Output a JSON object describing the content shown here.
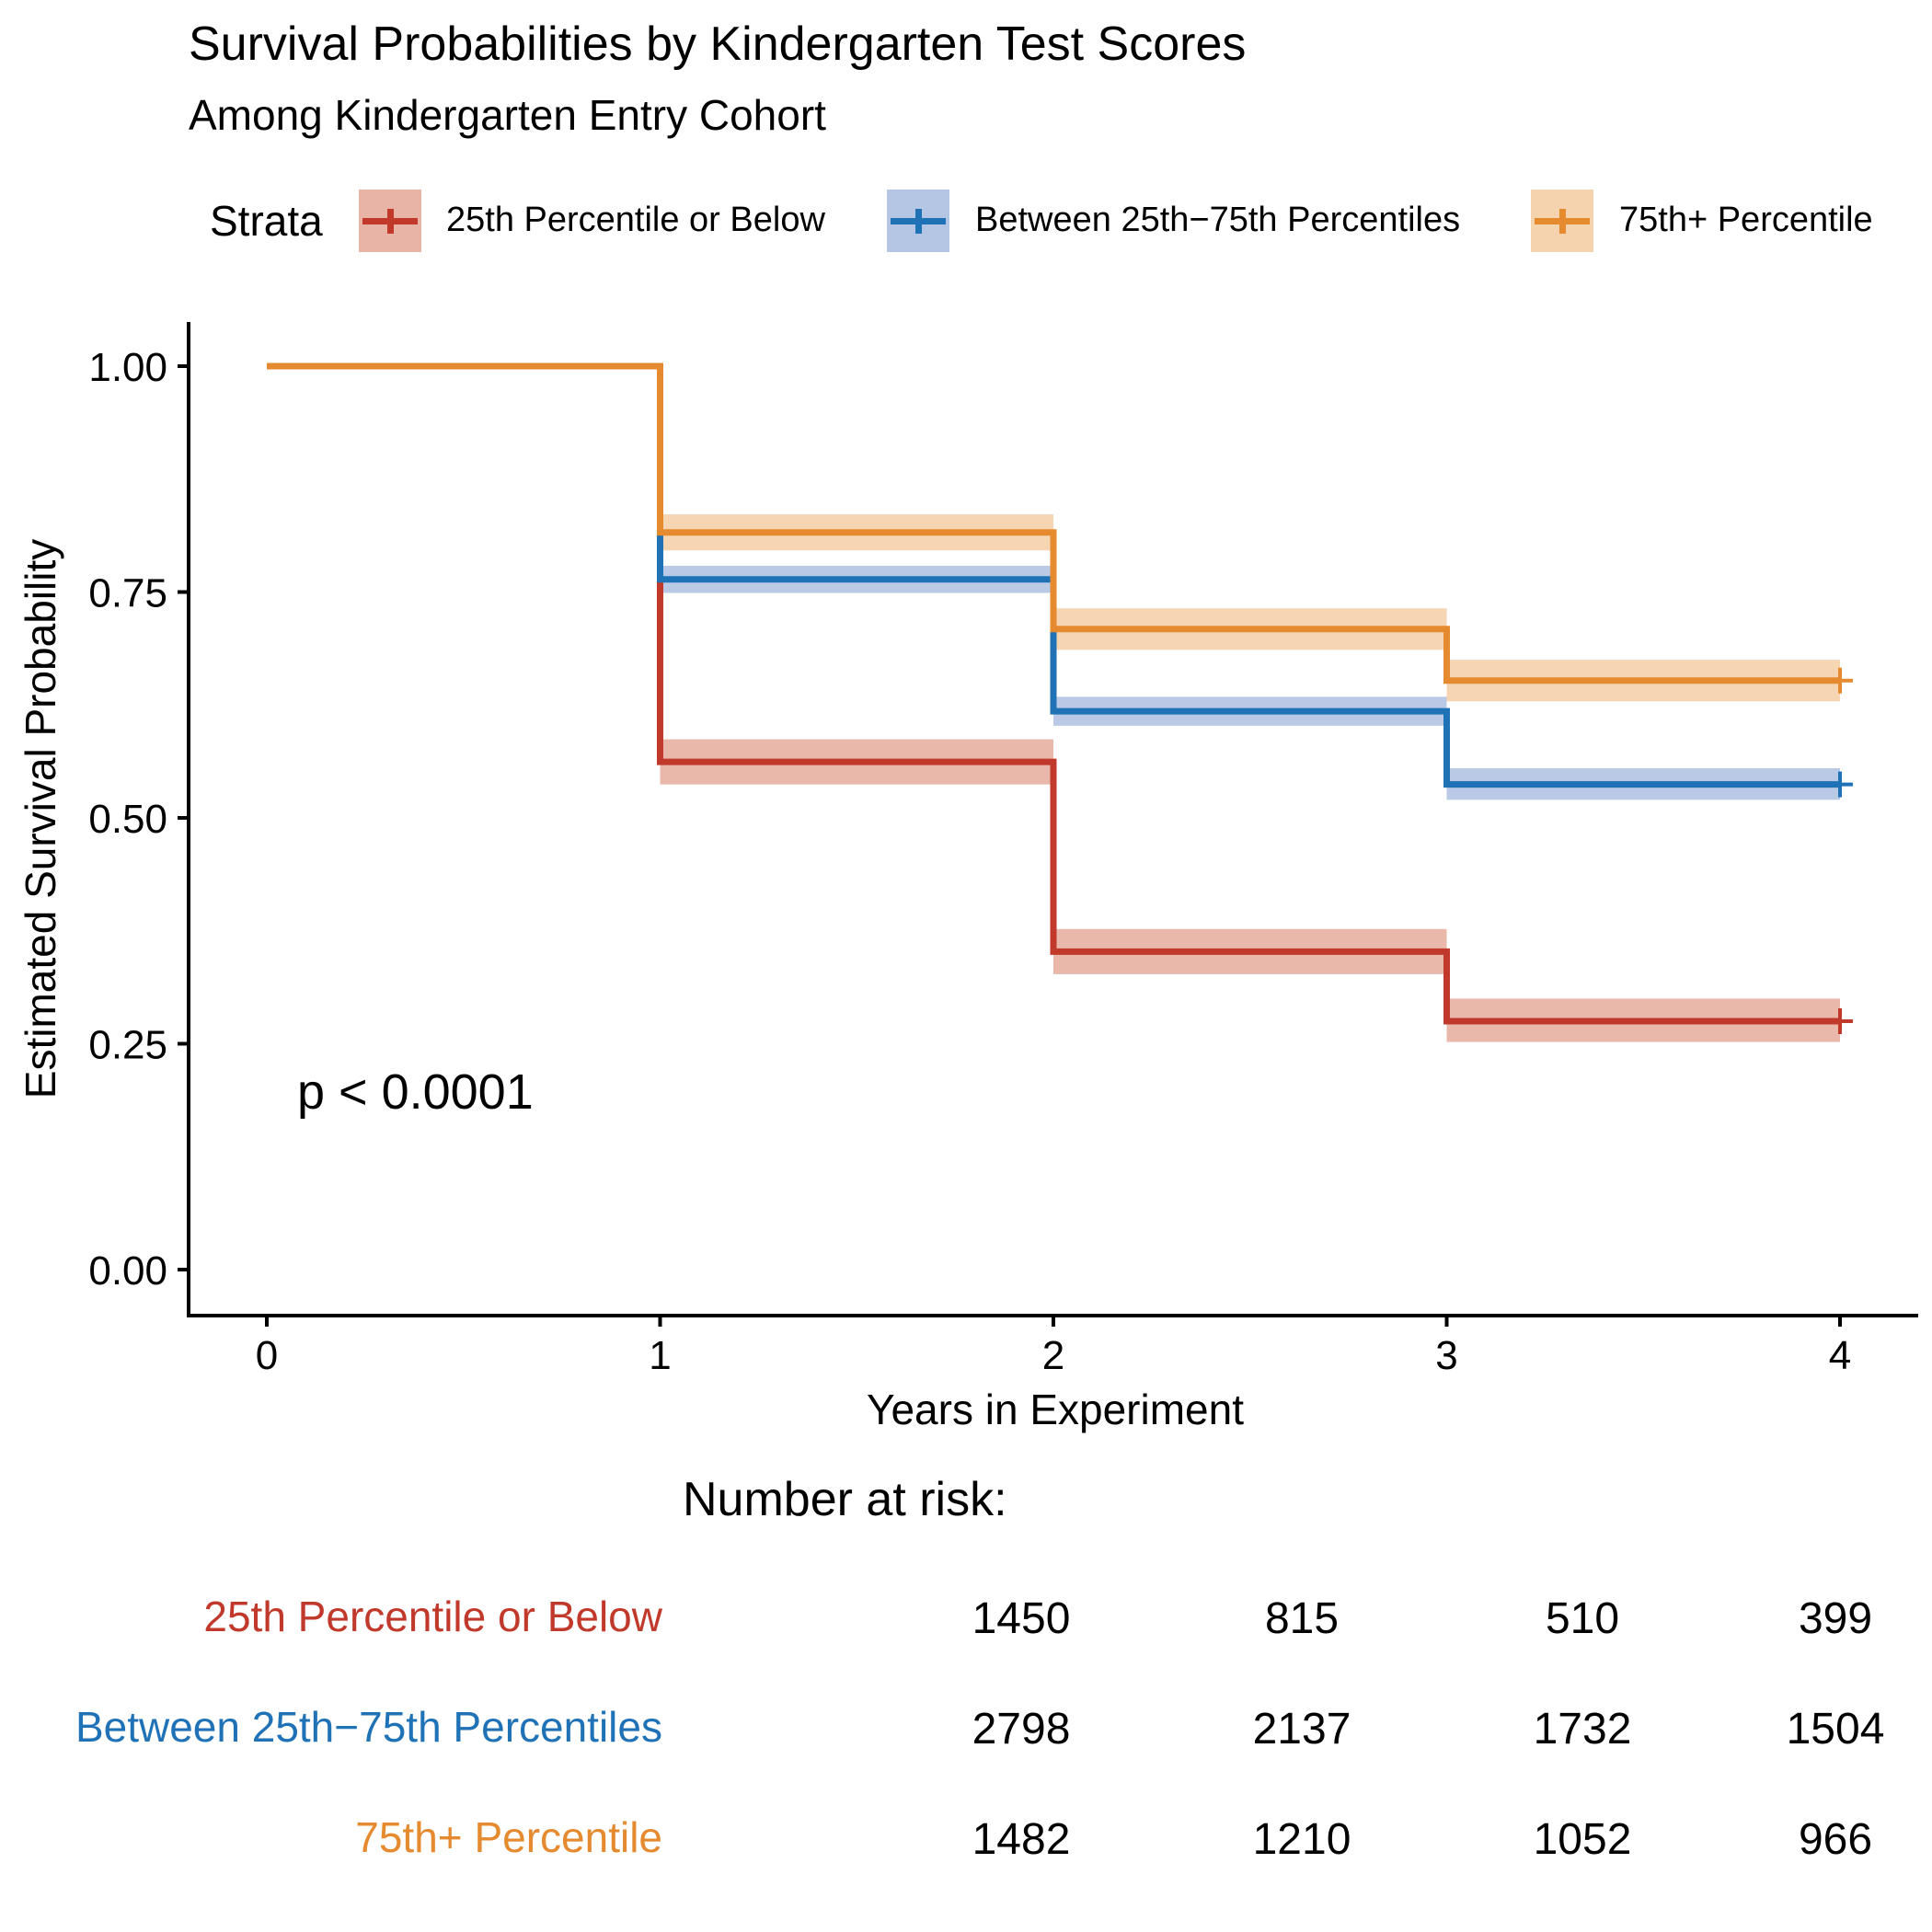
{
  "chart_data": {
    "type": "line",
    "title": "Survival Probabilities by Kindergarten Test Scores",
    "subtitle": "Among Kindergarten Entry Cohort",
    "xlabel": "Years in Experiment",
    "ylabel": "Estimated Survival Probability",
    "xlim": [
      0,
      4
    ],
    "ylim": [
      0,
      1
    ],
    "x_ticks": [
      "0",
      "1",
      "2",
      "3",
      "4"
    ],
    "y_ticks": [
      "0.00",
      "0.25",
      "0.50",
      "0.75",
      "1.00"
    ],
    "legend_title": "Strata",
    "legend_position": "top",
    "grid": false,
    "annotation": "p < 0.0001",
    "x": [
      0,
      1,
      2,
      3,
      4
    ],
    "series": [
      {
        "name": "25th Percentile or Below",
        "color": "#C0392B",
        "band_color": "#E8B4A6",
        "values": [
          1.0,
          0.562,
          0.352,
          0.275,
          0.275
        ],
        "lower": [
          1.0,
          0.537,
          0.327,
          0.252,
          0.252
        ],
        "upper": [
          1.0,
          0.587,
          0.377,
          0.3,
          0.3
        ]
      },
      {
        "name": "Between 25th−75th Percentiles",
        "color": "#1F72B6",
        "band_color": "#B5C6E5",
        "values": [
          1.0,
          0.764,
          0.618,
          0.537,
          0.537
        ],
        "lower": [
          1.0,
          0.749,
          0.602,
          0.52,
          0.52
        ],
        "upper": [
          1.0,
          0.779,
          0.634,
          0.555,
          0.555
        ]
      },
      {
        "name": "75th+ Percentile",
        "color": "#E58A2E",
        "band_color": "#F6D3AF",
        "values": [
          1.0,
          0.816,
          0.709,
          0.652,
          0.652
        ],
        "lower": [
          1.0,
          0.796,
          0.686,
          0.629,
          0.629
        ],
        "upper": [
          1.0,
          0.836,
          0.732,
          0.675,
          0.675
        ]
      }
    ],
    "risk_table": {
      "title": "Number at risk:",
      "rows": [
        {
          "name": "25th Percentile or Below",
          "values": [
            "1450",
            "815",
            "510",
            "399"
          ]
        },
        {
          "name": "Between 25th−75th Percentiles",
          "values": [
            "2798",
            "2137",
            "1732",
            "1504"
          ]
        },
        {
          "name": "75th+ Percentile",
          "values": [
            "1482",
            "1210",
            "1052",
            "966"
          ]
        }
      ]
    }
  }
}
